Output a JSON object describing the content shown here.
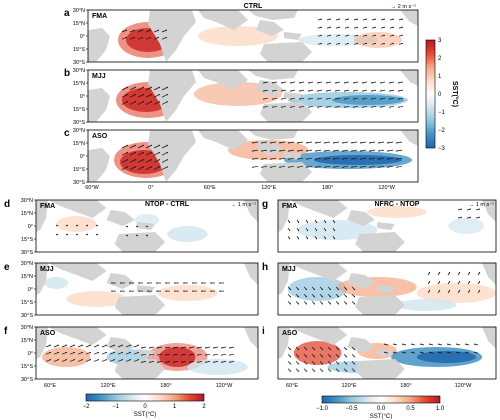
{
  "figure": {
    "colors": {
      "warm_strong": "#b2182b",
      "warm": "#e34a33",
      "warm_light": "#f4a582",
      "warm_faint": "#fddbc7",
      "cool_faint": "#d1e5f0",
      "cool_light": "#92c5de",
      "cool": "#4393c3",
      "cool_strong": "#2166ac",
      "land": "#d3d3d3",
      "arrow": "#111111"
    },
    "top": {
      "panels": [
        {
          "label": "a",
          "season": "FMA",
          "title": "CTRL",
          "scale": "→ 2 m s⁻¹"
        },
        {
          "label": "b",
          "season": "MJJ"
        },
        {
          "label": "c",
          "season": "ASO"
        }
      ],
      "lat_ticks": [
        "30°N",
        "15°N",
        "0°",
        "15°S",
        "30°S"
      ],
      "lon_ticks": [
        "60°W",
        "0°",
        "60°E",
        "120°E",
        "180°",
        "120°W"
      ],
      "colorbar": {
        "label": "SST(°C)",
        "ticks": [
          "3",
          "2",
          "1",
          "0",
          "−1",
          "−2",
          "−3"
        ],
        "range": [
          -3,
          3
        ]
      }
    },
    "left": {
      "title": "NTOP - CTRL",
      "scale": "→ 1 m s⁻¹",
      "panels": [
        {
          "label": "d",
          "season": "FMA"
        },
        {
          "label": "e",
          "season": "MJJ"
        },
        {
          "label": "f",
          "season": "ASO"
        }
      ],
      "lat_ticks": [
        "30°N",
        "15°N",
        "0°",
        "15°S",
        "30°S"
      ],
      "lon_ticks": [
        "60°E",
        "120°E",
        "180°",
        "120°W"
      ],
      "colorbar": {
        "label": "SST(°C)",
        "ticks": [
          "−2",
          "−1",
          "0",
          "1",
          "2"
        ],
        "range": [
          -2,
          2
        ]
      }
    },
    "right": {
      "title": "NFRC - NTOP",
      "scale": "→ 1 m s⁻¹",
      "panels": [
        {
          "label": "g",
          "season": "FMA"
        },
        {
          "label": "h",
          "season": "MJJ"
        },
        {
          "label": "i",
          "season": "ASO"
        }
      ],
      "lon_ticks": [
        "60°E",
        "120°E",
        "180°",
        "120°W"
      ],
      "colorbar": {
        "label": "SST(°C)",
        "ticks": [
          "−1.0",
          "−0.5",
          "0.0",
          "0.5",
          "1.0"
        ],
        "range": [
          -1.0,
          1.0
        ]
      }
    }
  }
}
